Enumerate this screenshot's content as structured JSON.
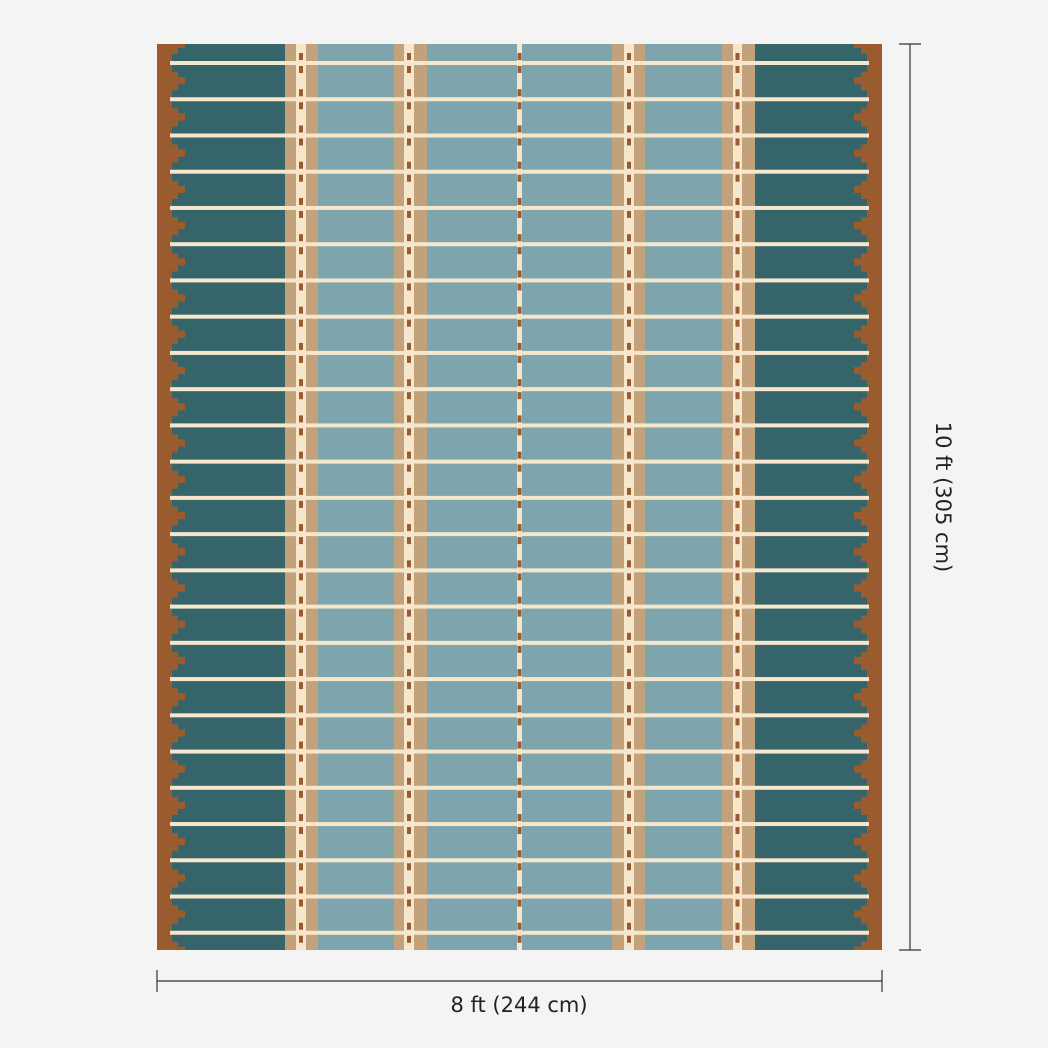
{
  "dimensions": {
    "width": "8 ft (244 cm)",
    "height": "10 ft (305 cm)"
  }
}
